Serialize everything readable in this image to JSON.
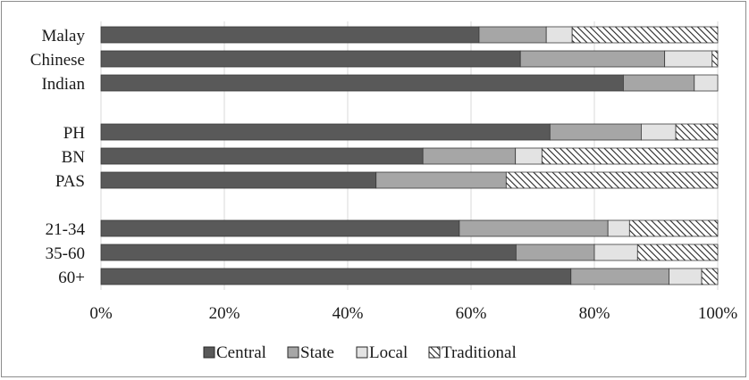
{
  "chart_data": {
    "type": "bar",
    "orientation": "horizontal",
    "stacked": true,
    "percent_stacked": true,
    "title": "",
    "xlabel": "",
    "ylabel": "",
    "xlim": [
      0,
      100
    ],
    "x_ticks": [
      "0%",
      "20%",
      "40%",
      "60%",
      "80%",
      "100%"
    ],
    "x_tick_values": [
      0,
      20,
      40,
      60,
      80,
      100
    ],
    "grid": "vertical",
    "legend_position": "bottom",
    "categories": [
      "Malay",
      "Chinese",
      "Indian",
      "PH",
      "BN",
      "PAS",
      "21-34",
      "35-60",
      "60+"
    ],
    "groups": [
      [
        "Malay",
        "Chinese",
        "Indian"
      ],
      [
        "PH",
        "BN",
        "PAS"
      ],
      [
        "21-34",
        "35-60",
        "60+"
      ]
    ],
    "series": [
      {
        "name": "Central",
        "color": "#595959",
        "pattern": "solid",
        "values": [
          61.3,
          68.0,
          84.7,
          72.8,
          52.2,
          44.6,
          58.1,
          67.3,
          76.2
        ]
      },
      {
        "name": "State",
        "color": "#a6a6a6",
        "pattern": "solid",
        "values": [
          10.9,
          23.4,
          11.5,
          14.8,
          15.0,
          21.1,
          24.1,
          12.7,
          15.9
        ]
      },
      {
        "name": "Local",
        "color": "#e3e3e3",
        "pattern": "solid",
        "values": [
          4.2,
          7.7,
          3.8,
          5.6,
          4.3,
          0.0,
          3.5,
          7.0,
          5.3
        ]
      },
      {
        "name": "Traditional",
        "color": "#ffffff",
        "pattern": "diagonal-hatch",
        "values": [
          23.6,
          0.9,
          0.0,
          6.8,
          28.5,
          34.3,
          14.3,
          13.0,
          2.6
        ]
      }
    ]
  }
}
